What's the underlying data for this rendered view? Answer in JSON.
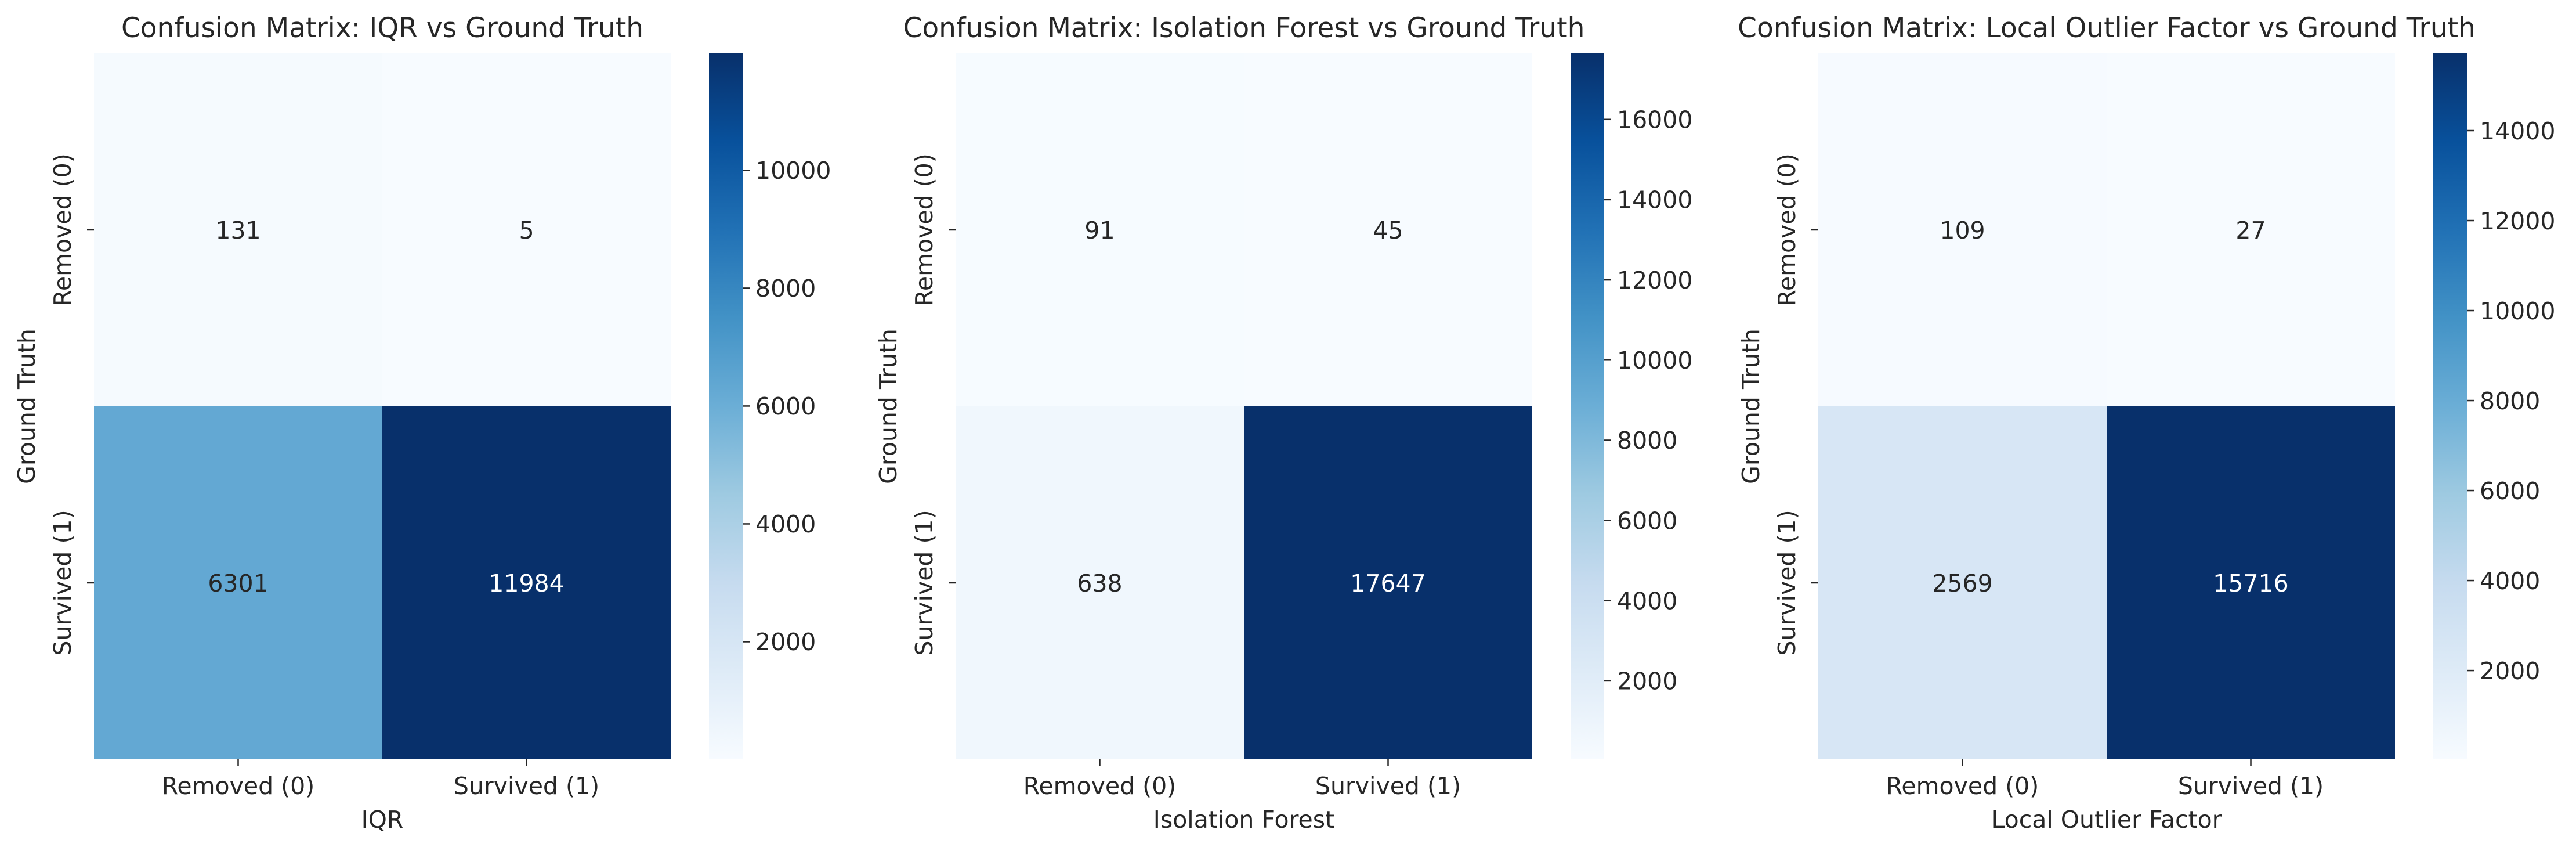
{
  "chart_data": [
    {
      "type": "heatmap",
      "title": "Confusion Matrix: IQR vs Ground Truth",
      "xlabel": "IQR",
      "ylabel": "Ground Truth",
      "x_categories": [
        "Removed (0)",
        "Survived (1)"
      ],
      "y_categories": [
        "Removed (0)",
        "Survived (1)"
      ],
      "values": [
        [
          131,
          5
        ],
        [
          6301,
          11984
        ]
      ],
      "colorbar": {
        "min": 5,
        "max": 11984,
        "ticks": [
          2000,
          4000,
          6000,
          8000,
          10000
        ]
      }
    },
    {
      "type": "heatmap",
      "title": "Confusion Matrix: Isolation Forest vs Ground Truth",
      "xlabel": "Isolation Forest",
      "ylabel": "Ground Truth",
      "x_categories": [
        "Removed (0)",
        "Survived (1)"
      ],
      "y_categories": [
        "Removed (0)",
        "Survived (1)"
      ],
      "values": [
        [
          91,
          45
        ],
        [
          638,
          17647
        ]
      ],
      "colorbar": {
        "min": 45,
        "max": 17647,
        "ticks": [
          2000,
          4000,
          6000,
          8000,
          10000,
          12000,
          14000,
          16000
        ]
      }
    },
    {
      "type": "heatmap",
      "title": "Confusion Matrix: Local Outlier Factor vs Ground Truth",
      "xlabel": "Local Outlier Factor",
      "ylabel": "Ground Truth",
      "x_categories": [
        "Removed (0)",
        "Survived (1)"
      ],
      "y_categories": [
        "Removed (0)",
        "Survived (1)"
      ],
      "values": [
        [
          109,
          27
        ],
        [
          2569,
          15716
        ]
      ],
      "colorbar": {
        "min": 27,
        "max": 15716,
        "ticks": [
          2000,
          4000,
          6000,
          8000,
          10000,
          12000,
          14000
        ]
      }
    }
  ],
  "colormap": "Blues",
  "colors": {
    "low": "#f7fbff",
    "high": "#08306b"
  }
}
